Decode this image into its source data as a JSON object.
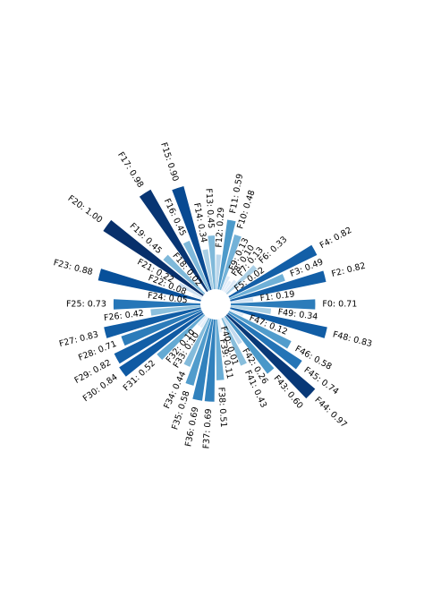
{
  "chart_data": {
    "type": "bar",
    "projection": "polar",
    "grid": false,
    "axes_visible": false,
    "colormap": "Blues",
    "range": [
      0,
      1
    ],
    "categories": [
      "F0",
      "F1",
      "F2",
      "F3",
      "F4",
      "F5",
      "F6",
      "F7",
      "F8",
      "F9",
      "F10",
      "F11",
      "F12",
      "F13",
      "F14",
      "F15",
      "F16",
      "F17",
      "F18",
      "F19",
      "F20",
      "F21",
      "F22",
      "F23",
      "F24",
      "F25",
      "F26",
      "F27",
      "F28",
      "F29",
      "F30",
      "F31",
      "F32",
      "F33",
      "F34",
      "F35",
      "F36",
      "F37",
      "F38",
      "F39",
      "F40",
      "F41",
      "F42",
      "F43",
      "F44",
      "F45",
      "F46",
      "F47",
      "F48",
      "F49"
    ],
    "values": [
      0.71,
      0.19,
      0.82,
      0.49,
      0.82,
      0.02,
      0.33,
      0.13,
      0.1,
      0.13,
      0.48,
      0.59,
      0.29,
      0.45,
      0.34,
      0.9,
      0.45,
      0.98,
      0.02,
      0.45,
      1.0,
      0.22,
      0.08,
      0.88,
      0.05,
      0.73,
      0.42,
      0.83,
      0.71,
      0.82,
      0.84,
      0.52,
      0.1,
      0.1,
      0.44,
      0.58,
      0.69,
      0.69,
      0.51,
      0.11,
      0.01,
      0.43,
      0.26,
      0.6,
      0.97,
      0.74,
      0.58,
      0.12,
      0.83,
      0.34
    ],
    "labels": [
      "F0: 0.71",
      "F1: 0.19",
      "F2: 0.82",
      "F3: 0.49",
      "F4: 0.82",
      "F5: 0.02",
      "F6: 0.33",
      "F7: 0.13",
      "F8: 0.10",
      "F9: 0.13",
      "F10: 0.48",
      "F11: 0.59",
      "F12: 0.29",
      "F13: 0.45",
      "F14: 0.34",
      "F15: 0.90",
      "F16: 0.45",
      "F17: 0.98",
      "F18: 0.02",
      "F19: 0.45",
      "F20: 1.00",
      "F21: 0.22",
      "F22: 0.08",
      "F23: 0.88",
      "F24: 0.05",
      "F25: 0.73",
      "F26: 0.42",
      "F27: 0.83",
      "F28: 0.71",
      "F29: 0.82",
      "F30: 0.84",
      "F31: 0.52",
      "F32: 0.10",
      "F33: 0.10",
      "F34: 0.44",
      "F35: 0.58",
      "F36: 0.69",
      "F37: 0.69",
      "F38: 0.51",
      "F39: 0.11",
      "F40: 0.01",
      "F41: 0.43",
      "F42: 0.26",
      "F43: 0.60",
      "F44: 0.97",
      "F45: 0.74",
      "F46: 0.58",
      "F47: 0.12",
      "F48: 0.83",
      "F49: 0.34"
    ]
  }
}
